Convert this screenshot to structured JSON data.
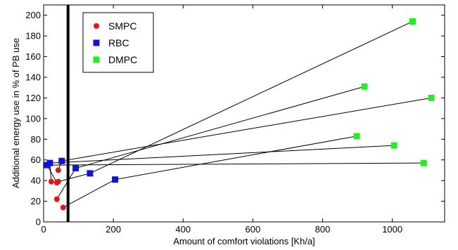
{
  "chart_data": {
    "type": "scatter",
    "xlabel": "Amount of comfort violations [Kh/a]",
    "ylabel": "Additional energy use in % of PB use",
    "xlim": [
      0,
      1150
    ],
    "ylim": [
      0,
      210
    ],
    "x_ticks": [
      0,
      200,
      400,
      600,
      800,
      1000
    ],
    "y_ticks": [
      0,
      20,
      40,
      60,
      80,
      100,
      120,
      140,
      160,
      180,
      200
    ],
    "grid": false,
    "legend_position": "top-left",
    "vertical_line_x": 70,
    "series": [
      {
        "name": "SMPC",
        "marker": "circle",
        "color": "#ee1111",
        "points": [
          [
            22,
            39
          ],
          [
            42,
            50
          ],
          [
            42,
            39
          ],
          [
            38,
            38
          ],
          [
            38,
            22
          ],
          [
            56,
            14
          ]
        ]
      },
      {
        "name": "RBC",
        "marker": "square",
        "color": "#1111dd",
        "points": [
          [
            10,
            55
          ],
          [
            18,
            57
          ],
          [
            52,
            59
          ],
          [
            92,
            52
          ],
          [
            133,
            47
          ],
          [
            205,
            41
          ]
        ]
      },
      {
        "name": "DMPC",
        "marker": "square",
        "color": "#22ee22",
        "points": [
          [
            1058,
            194
          ],
          [
            920,
            131
          ],
          [
            1112,
            120
          ],
          [
            898,
            83
          ],
          [
            1005,
            74
          ],
          [
            1090,
            57
          ]
        ]
      }
    ],
    "connections": [
      [
        [
          56,
          14
        ],
        [
          205,
          41
        ]
      ],
      [
        [
          42,
          39
        ],
        [
          133,
          47
        ]
      ],
      [
        [
          38,
          38
        ],
        [
          10,
          55
        ]
      ],
      [
        [
          42,
          50
        ],
        [
          52,
          59
        ]
      ],
      [
        [
          22,
          39
        ],
        [
          18,
          57
        ]
      ],
      [
        [
          38,
          22
        ],
        [
          92,
          52
        ]
      ],
      [
        [
          205,
          41
        ],
        [
          898,
          83
        ]
      ],
      [
        [
          133,
          47
        ],
        [
          1058,
          194
        ]
      ],
      [
        [
          92,
          52
        ],
        [
          920,
          131
        ]
      ],
      [
        [
          52,
          59
        ],
        [
          1112,
          120
        ]
      ],
      [
        [
          18,
          57
        ],
        [
          1005,
          74
        ]
      ],
      [
        [
          10,
          55
        ],
        [
          1090,
          57
        ]
      ]
    ]
  }
}
